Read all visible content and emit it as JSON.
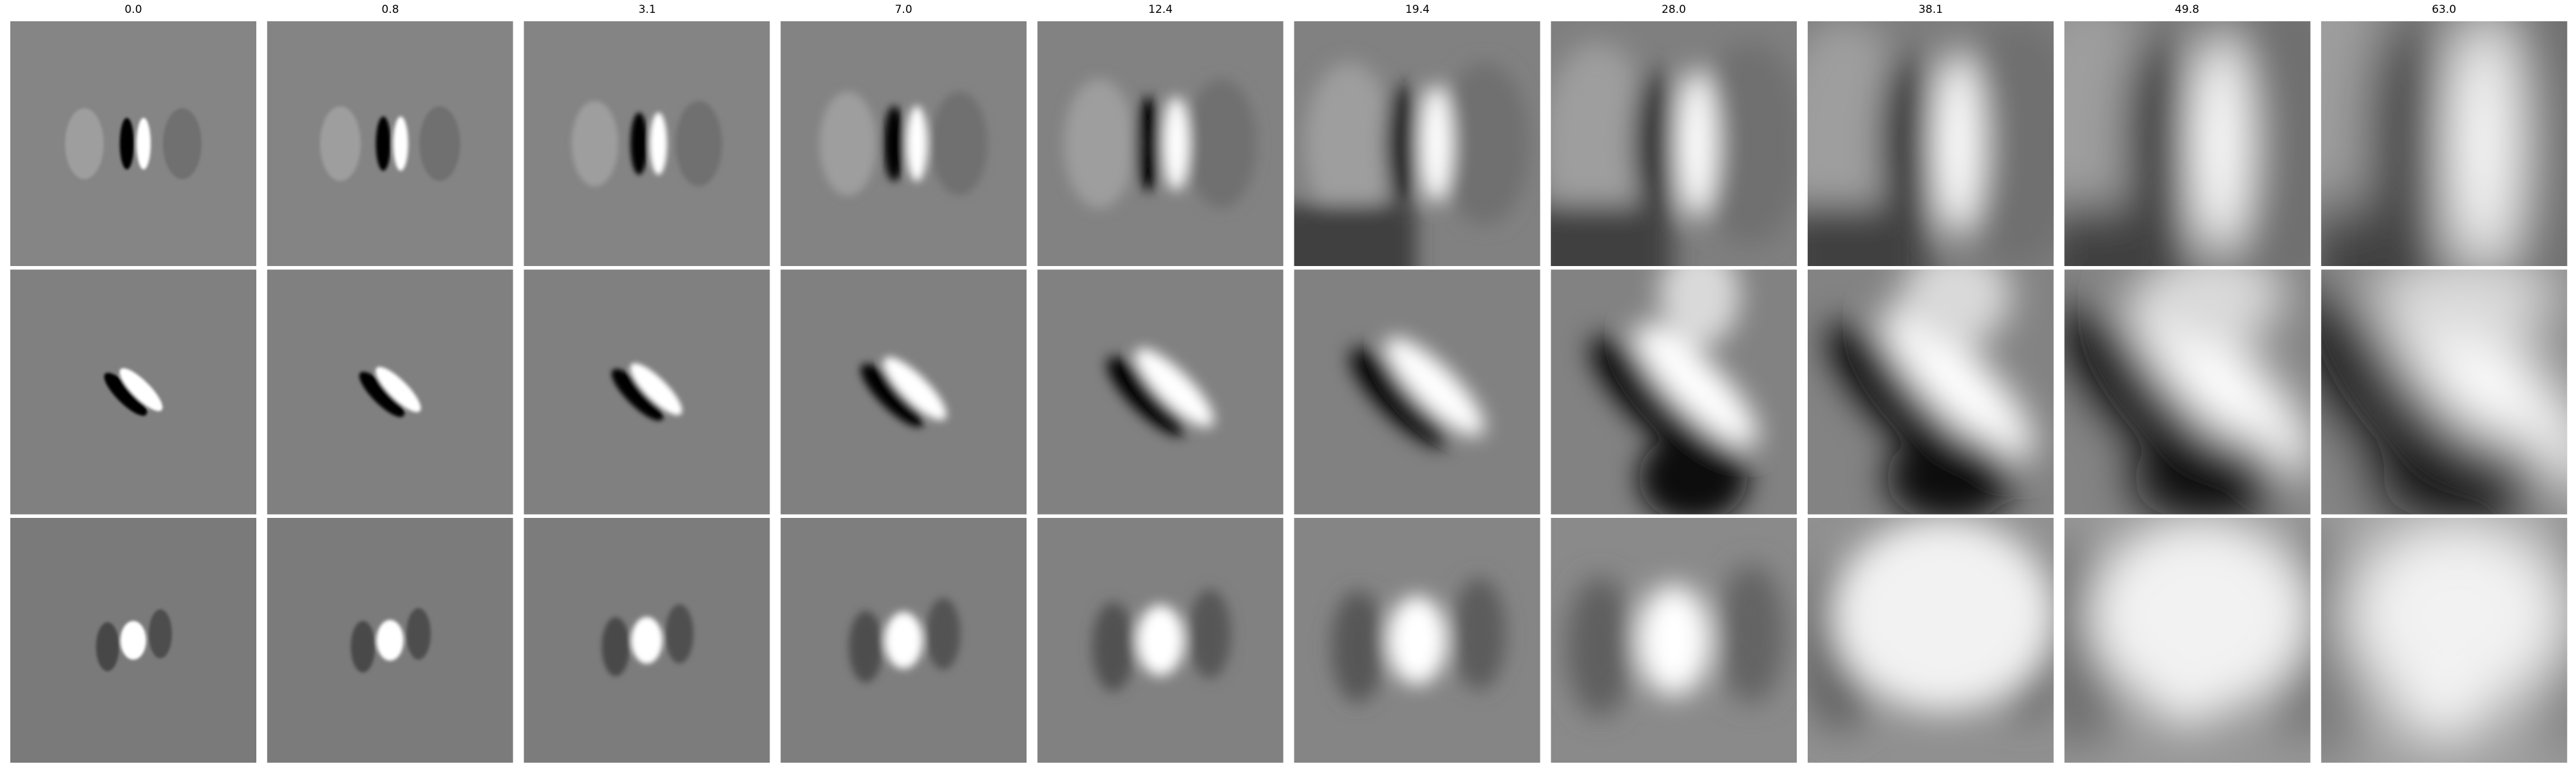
{
  "columns": [
    {
      "label": "0.0",
      "sigma": 0.0
    },
    {
      "label": "0.8",
      "sigma": 0.8
    },
    {
      "label": "3.1",
      "sigma": 3.1
    },
    {
      "label": "7.0",
      "sigma": 7.0
    },
    {
      "label": "12.4",
      "sigma": 12.4
    },
    {
      "label": "19.4",
      "sigma": 19.4
    },
    {
      "label": "28.0",
      "sigma": 28.0
    },
    {
      "label": "38.1",
      "sigma": 38.1
    },
    {
      "label": "49.8",
      "sigma": 49.8
    },
    {
      "label": "63.0",
      "sigma": 63.0
    }
  ],
  "rows": [
    {
      "pattern": "vertical-dipole-dark-left-light-right"
    },
    {
      "pattern": "diagonal-dipole-dark-lower-left-light-upper-right"
    },
    {
      "pattern": "bright-center-blob"
    }
  ],
  "colors": {
    "background": "#ffffff",
    "mid_gray": "#7f7f7f",
    "black": "#000000",
    "white": "#ffffff"
  }
}
